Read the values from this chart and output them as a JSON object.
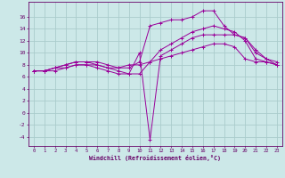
{
  "xlabel": "Windchill (Refroidissement éolien,°C)",
  "background_color": "#cce8e8",
  "grid_color": "#aacccc",
  "line_color": "#990099",
  "x_ticks": [
    0,
    1,
    2,
    3,
    4,
    5,
    6,
    7,
    8,
    9,
    10,
    11,
    12,
    13,
    14,
    15,
    16,
    17,
    18,
    19,
    20,
    21,
    22,
    23
  ],
  "y_ticks": [
    -4,
    -2,
    0,
    2,
    4,
    6,
    8,
    10,
    12,
    14,
    16
  ],
  "xlim": [
    -0.5,
    23.5
  ],
  "ylim": [
    -5.5,
    18.5
  ],
  "line1_x": [
    0,
    1,
    2,
    3,
    4,
    5,
    6,
    7,
    8,
    9,
    10,
    11,
    12,
    13,
    14,
    15,
    16,
    17,
    18,
    19,
    20,
    21,
    22,
    23
  ],
  "line1_y": [
    7.0,
    7.0,
    7.5,
    8.0,
    8.5,
    8.5,
    8.5,
    8.0,
    7.5,
    7.5,
    8.5,
    14.5,
    15.0,
    15.5,
    15.5,
    16.0,
    17.0,
    17.0,
    14.5,
    13.0,
    12.5,
    10.0,
    9.0,
    8.5
  ],
  "line2_x": [
    0,
    1,
    2,
    3,
    4,
    5,
    6,
    7,
    8,
    9,
    10,
    11,
    12,
    13,
    14,
    15,
    16,
    17,
    18,
    19,
    20,
    21,
    22,
    23
  ],
  "line2_y": [
    7.0,
    7.0,
    7.5,
    8.0,
    8.5,
    8.5,
    8.0,
    7.5,
    7.0,
    6.5,
    6.5,
    8.5,
    10.5,
    11.5,
    12.5,
    13.5,
    14.0,
    14.5,
    14.0,
    13.5,
    12.0,
    9.0,
    8.5,
    8.0
  ],
  "line3_x": [
    0,
    1,
    2,
    3,
    4,
    5,
    6,
    7,
    8,
    9,
    10,
    11,
    12,
    13,
    14,
    15,
    16,
    17,
    18,
    19,
    20,
    21,
    22,
    23
  ],
  "line3_y": [
    7.0,
    7.0,
    7.5,
    7.5,
    8.0,
    8.0,
    7.5,
    7.0,
    6.5,
    6.5,
    10.0,
    -4.5,
    9.5,
    10.5,
    11.5,
    12.5,
    13.0,
    13.0,
    13.0,
    13.0,
    12.5,
    10.5,
    9.0,
    8.0
  ],
  "line4_x": [
    0,
    1,
    2,
    3,
    4,
    5,
    6,
    7,
    8,
    9,
    10,
    11,
    12,
    13,
    14,
    15,
    16,
    17,
    18,
    19,
    20,
    21,
    22,
    23
  ],
  "line4_y": [
    7.0,
    7.0,
    7.0,
    7.5,
    8.0,
    8.0,
    8.0,
    7.5,
    7.5,
    8.0,
    8.0,
    8.5,
    9.0,
    9.5,
    10.0,
    10.5,
    11.0,
    11.5,
    11.5,
    11.0,
    9.0,
    8.5,
    8.5,
    8.0
  ]
}
